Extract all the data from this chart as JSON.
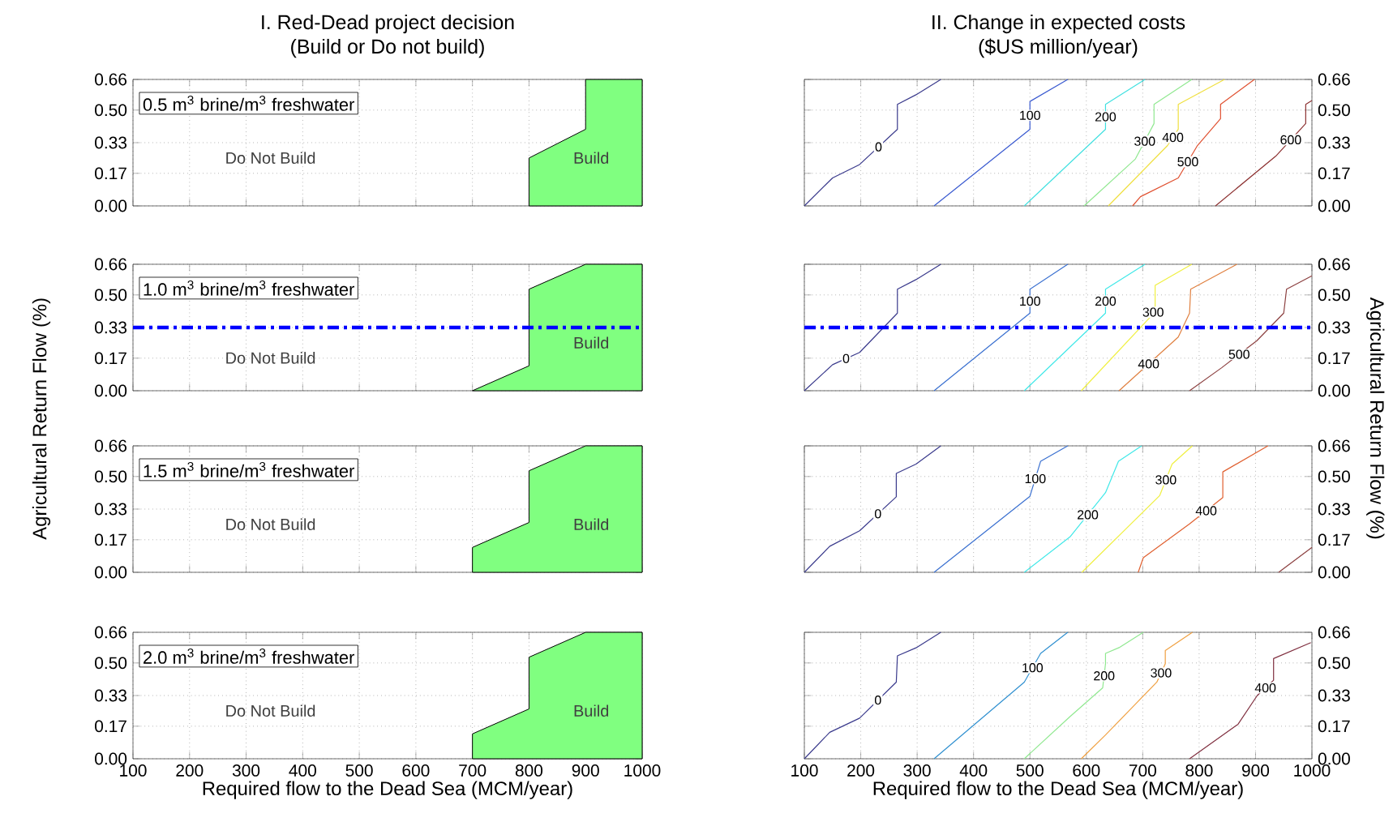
{
  "chart_data": [
    {
      "type": "area",
      "title": "I. Red-Dead project decision",
      "subtitle": "(Build or Do not build)",
      "color": "#80ff80",
      "x": [
        800,
        900,
        900,
        1000
      ],
      "values": [
        0.25,
        0.4,
        0.66,
        0.66
      ],
      "xlim": [
        100,
        1000
      ],
      "ylim": [
        0,
        0.66
      ],
      "xticks": [
        100,
        200,
        300,
        400,
        500,
        600,
        700,
        800,
        900,
        1000
      ],
      "yticks": [
        {
          "value": 0,
          "label": "0.00"
        },
        {
          "value": 0.17,
          "label": "0.17"
        },
        {
          "value": 0.33,
          "label": "0.33"
        },
        {
          "value": 0.5,
          "label": "0.50"
        },
        {
          "value": 0.66,
          "label": "0.66"
        }
      ],
      "grid": true,
      "tick_labels": "y",
      "annotations": [
        "0.5 m$^{3}$ brine/m$^{3}$ freshwater",
        "Do Not Build",
        "Build"
      ]
    },
    {
      "type": "line",
      "title": "II. Change in expected costs",
      "subtitle": "($US million/year)",
      "xlim": [
        100,
        1000
      ],
      "ylim": [
        0,
        0.66
      ],
      "xticks": [
        100,
        200,
        300,
        400,
        500,
        600,
        700,
        800,
        900,
        1000
      ],
      "yticks": [
        {
          "value": 0,
          "label": "0.00"
        },
        {
          "value": 0.17,
          "label": "0.17"
        },
        {
          "value": 0.33,
          "label": "0.33"
        },
        {
          "value": 0.5,
          "label": "0.50"
        },
        {
          "value": 0.66,
          "label": "0.66"
        }
      ],
      "grid": true,
      "tick_labels": "y",
      "series": [
        {
          "name": "0",
          "color": "#3a3a8c",
          "x": [
            100,
            150,
            198,
            265,
            265,
            298,
            342
          ],
          "values": [
            0,
            0.146,
            0.216,
            0.4,
            0.53,
            0.58,
            0.66
          ]
        },
        {
          "name": "100",
          "color": "#3a5ad0",
          "x": [
            330,
            500,
            500,
            567
          ],
          "values": [
            0,
            0.4,
            0.545,
            0.66
          ]
        },
        {
          "name": "200",
          "color": "#40e0e0",
          "x": [
            490,
            634,
            634,
            704
          ],
          "values": [
            0,
            0.4,
            0.53,
            0.66
          ]
        },
        {
          "name": "300",
          "color": "#90e890",
          "x": [
            596,
            687,
            720,
            720,
            787
          ],
          "values": [
            0,
            0.245,
            0.43,
            0.53,
            0.66
          ]
        },
        {
          "name": "400",
          "color": "#f0e040",
          "x": [
            639,
            744,
            763,
            763,
            845
          ],
          "values": [
            0,
            0.315,
            0.4,
            0.53,
            0.66
          ]
        },
        {
          "name": "500",
          "color": "#e05030",
          "x": [
            682,
            696,
            763,
            797,
            838,
            838,
            898
          ],
          "values": [
            0,
            0.048,
            0.146,
            0.315,
            0.455,
            0.53,
            0.66
          ]
        },
        {
          "name": "600",
          "color": "#8c3030",
          "x": [
            829,
            936,
            989,
            989,
            1000
          ],
          "values": [
            0,
            0.26,
            0.43,
            0.53,
            0.55
          ]
        }
      ]
    },
    {
      "type": "area",
      "color": "#80ff80",
      "x": [
        700,
        800,
        800,
        900,
        1000
      ],
      "values": [
        0,
        0.13,
        0.53,
        0.66,
        0.66
      ],
      "xlim": [
        100,
        1000
      ],
      "ylim": [
        0,
        0.66
      ],
      "xticks": [
        100,
        200,
        300,
        400,
        500,
        600,
        700,
        800,
        900,
        1000
      ],
      "yticks": [
        {
          "value": 0,
          "label": "0.00"
        },
        {
          "value": 0.17,
          "label": "0.17"
        },
        {
          "value": 0.33,
          "label": "0.33"
        },
        {
          "value": 0.5,
          "label": "0.50"
        },
        {
          "value": 0.66,
          "label": "0.66"
        }
      ],
      "grid": true,
      "tick_labels": "y",
      "ylabel": "Agricultural Return Flow (%)",
      "ref_lines": [
        {
          "axis": "y",
          "value": 0.33,
          "color": "#0000ff",
          "line_style": "dashdot"
        }
      ],
      "annotations": [
        "1.0 m$^{3}$ brine/m$^{3}$ freshwater",
        "Do Not Build",
        "Build"
      ]
    },
    {
      "type": "line",
      "xlim": [
        100,
        1000
      ],
      "ylim": [
        0,
        0.66
      ],
      "xticks": [
        100,
        200,
        300,
        400,
        500,
        600,
        700,
        800,
        900,
        1000
      ],
      "yticks": [
        {
          "value": 0,
          "label": "0.00"
        },
        {
          "value": 0.17,
          "label": "0.17"
        },
        {
          "value": 0.33,
          "label": "0.33"
        },
        {
          "value": 0.5,
          "label": "0.50"
        },
        {
          "value": 0.66,
          "label": "0.66"
        }
      ],
      "grid": true,
      "tick_labels": "y",
      "ylabel": "Agricultural Return Flow (%)",
      "ref_lines": [
        {
          "axis": "y",
          "value": 0.33,
          "color": "#0000ff",
          "line_style": "dashdot"
        }
      ],
      "series": [
        {
          "name": "0",
          "color": "#3a3a8c",
          "x": [
            100,
            150,
            198,
            265,
            265,
            298,
            342
          ],
          "values": [
            0,
            0.136,
            0.2,
            0.405,
            0.53,
            0.58,
            0.66
          ]
        },
        {
          "name": "100",
          "color": "#3a70d0",
          "x": [
            330,
            500,
            500,
            567
          ],
          "values": [
            0,
            0.405,
            0.53,
            0.66
          ]
        },
        {
          "name": "200",
          "color": "#40e8e8",
          "x": [
            490,
            634,
            634,
            704
          ],
          "values": [
            0,
            0.405,
            0.53,
            0.66
          ]
        },
        {
          "name": "300",
          "color": "#f0f040",
          "x": [
            591,
            715,
            722,
            722,
            787
          ],
          "values": [
            0,
            0.39,
            0.43,
            0.55,
            0.66
          ]
        },
        {
          "name": "400",
          "color": "#e08040",
          "x": [
            658,
            763,
            783,
            785,
            867
          ],
          "values": [
            0,
            0.28,
            0.405,
            0.53,
            0.66
          ]
        },
        {
          "name": "500",
          "color": "#8c4040",
          "x": [
            783,
            840,
            902,
            950,
            955,
            1000
          ],
          "values": [
            0,
            0.12,
            0.26,
            0.405,
            0.53,
            0.6
          ]
        }
      ]
    },
    {
      "type": "area",
      "color": "#80ff80",
      "x": [
        700,
        800,
        800,
        900,
        1000
      ],
      "values": [
        0.13,
        0.26,
        0.53,
        0.66,
        0.66
      ],
      "xlim": [
        100,
        1000
      ],
      "ylim": [
        0,
        0.66
      ],
      "xticks": [
        100,
        200,
        300,
        400,
        500,
        600,
        700,
        800,
        900,
        1000
      ],
      "yticks": [
        {
          "value": 0,
          "label": "0.00"
        },
        {
          "value": 0.17,
          "label": "0.17"
        },
        {
          "value": 0.33,
          "label": "0.33"
        },
        {
          "value": 0.5,
          "label": "0.50"
        },
        {
          "value": 0.66,
          "label": "0.66"
        }
      ],
      "grid": true,
      "tick_labels": "y",
      "annotations": [
        "1.5 m$^{3}$ brine/m$^{3}$ freshwater",
        "Do Not Build",
        "Build"
      ]
    },
    {
      "type": "line",
      "xlim": [
        100,
        1000
      ],
      "ylim": [
        0,
        0.66
      ],
      "xticks": [
        100,
        200,
        300,
        400,
        500,
        600,
        700,
        800,
        900,
        1000
      ],
      "yticks": [
        {
          "value": 0,
          "label": "0.00"
        },
        {
          "value": 0.17,
          "label": "0.17"
        },
        {
          "value": 0.33,
          "label": "0.33"
        },
        {
          "value": 0.5,
          "label": "0.50"
        },
        {
          "value": 0.66,
          "label": "0.66"
        }
      ],
      "grid": true,
      "tick_labels": "y",
      "series": [
        {
          "name": "0",
          "color": "#3a3a8c",
          "x": [
            100,
            145,
            198,
            263,
            263,
            298,
            342
          ],
          "values": [
            0,
            0.136,
            0.217,
            0.394,
            0.516,
            0.565,
            0.66
          ]
        },
        {
          "name": "100",
          "color": "#3a70d0",
          "x": [
            330,
            500,
            519,
            567
          ],
          "values": [
            0,
            0.397,
            0.58,
            0.66
          ]
        },
        {
          "name": "200",
          "color": "#40e8e8",
          "x": [
            490,
            571,
            634,
            657,
            698
          ],
          "values": [
            0,
            0.185,
            0.416,
            0.58,
            0.66
          ]
        },
        {
          "name": "300",
          "color": "#f0f040",
          "x": [
            592,
            730,
            752,
            788
          ],
          "values": [
            0,
            0.4,
            0.565,
            0.66
          ]
        },
        {
          "name": "400",
          "color": "#e06030",
          "x": [
            692,
            701,
            783,
            842,
            842,
            922
          ],
          "values": [
            0,
            0.076,
            0.253,
            0.39,
            0.524,
            0.66
          ]
        },
        {
          "color": "#8c4040",
          "x": [
            941,
            1000
          ],
          "values": [
            0,
            0.13
          ]
        }
      ]
    },
    {
      "type": "area",
      "color": "#80ff80",
      "x": [
        700,
        800,
        800,
        900,
        1000
      ],
      "values": [
        0.13,
        0.26,
        0.53,
        0.66,
        0.66
      ],
      "xlim": [
        100,
        1000
      ],
      "ylim": [
        0,
        0.66
      ],
      "xticks": [
        100,
        200,
        300,
        400,
        500,
        600,
        700,
        800,
        900,
        1000
      ],
      "yticks": [
        {
          "value": 0,
          "label": "0.00"
        },
        {
          "value": 0.17,
          "label": "0.17"
        },
        {
          "value": 0.33,
          "label": "0.33"
        },
        {
          "value": 0.5,
          "label": "0.50"
        },
        {
          "value": 0.66,
          "label": "0.66"
        }
      ],
      "grid": true,
      "xlabel": "Required flow to the Dead Sea (MCM/year)",
      "annotations": [
        "2.0 m$^{3}$ brine/m$^{3}$ freshwater",
        "Do Not Build",
        "Build"
      ]
    },
    {
      "type": "line",
      "xlim": [
        100,
        1000
      ],
      "ylim": [
        0,
        0.66
      ],
      "xticks": [
        100,
        200,
        300,
        400,
        500,
        600,
        700,
        800,
        900,
        1000
      ],
      "yticks": [
        {
          "value": 0,
          "label": "0.00"
        },
        {
          "value": 0.17,
          "label": "0.17"
        },
        {
          "value": 0.33,
          "label": "0.33"
        },
        {
          "value": 0.5,
          "label": "0.50"
        },
        {
          "value": 0.66,
          "label": "0.66"
        }
      ],
      "grid": true,
      "xlabel": "Required flow to the Dead Sea (MCM/year)",
      "series": [
        {
          "name": "0",
          "color": "#3a3a8c",
          "x": [
            100,
            145,
            198,
            263,
            265,
            298,
            342
          ],
          "values": [
            0,
            0.138,
            0.212,
            0.4,
            0.537,
            0.579,
            0.66
          ]
        },
        {
          "name": "100",
          "color": "#3090d0",
          "x": [
            330,
            490,
            519,
            567
          ],
          "values": [
            0,
            0.4,
            0.55,
            0.66
          ]
        },
        {
          "name": "200",
          "color": "#90e890",
          "x": [
            490,
            571,
            629,
            634,
            634,
            658,
            701
          ],
          "values": [
            0,
            0.22,
            0.37,
            0.496,
            0.55,
            0.58,
            0.66
          ]
        },
        {
          "name": "300",
          "color": "#f0a040",
          "x": [
            591,
            634,
            725,
            740,
            740,
            788
          ],
          "values": [
            0,
            0.124,
            0.4,
            0.496,
            0.565,
            0.66
          ]
        },
        {
          "name": "400",
          "color": "#803040",
          "x": [
            783,
            869,
            903,
            932,
            932,
            998
          ],
          "values": [
            0,
            0.18,
            0.33,
            0.41,
            0.523,
            0.606
          ]
        }
      ]
    }
  ]
}
